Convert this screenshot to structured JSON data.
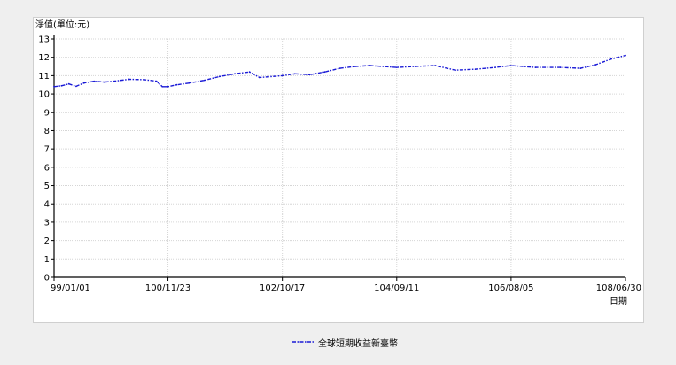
{
  "chart_data": {
    "type": "line",
    "ylabel": "淨值(單位:元)",
    "xlabel": "日期",
    "ylim": [
      0,
      13
    ],
    "yticks": [
      0,
      1,
      2,
      3,
      4,
      5,
      6,
      7,
      8,
      9,
      10,
      11,
      12,
      13
    ],
    "xticks": [
      "99/01/01",
      "100/11/23",
      "102/10/17",
      "104/09/11",
      "106/08/05",
      "108/06/30"
    ],
    "grid": true,
    "legend_position": "bottom-center",
    "series": [
      {
        "name": "全球短期收益新臺幣",
        "color": "#1a1ad6",
        "points": [
          [
            "99/01/01",
            10.4
          ],
          [
            "99/02/15",
            10.45
          ],
          [
            "99/04/01",
            10.55
          ],
          [
            "99/05/15",
            10.42
          ],
          [
            "99/07/01",
            10.6
          ],
          [
            "99/09/01",
            10.7
          ],
          [
            "99/11/01",
            10.65
          ],
          [
            "100/01/01",
            10.7
          ],
          [
            "100/04/01",
            10.8
          ],
          [
            "100/07/01",
            10.78
          ],
          [
            "100/09/15",
            10.7
          ],
          [
            "100/10/20",
            10.4
          ],
          [
            "100/11/23",
            10.4
          ],
          [
            "101/01/15",
            10.5
          ],
          [
            "101/04/01",
            10.6
          ],
          [
            "101/07/01",
            10.75
          ],
          [
            "101/10/01",
            10.95
          ],
          [
            "102/01/01",
            11.1
          ],
          [
            "102/04/01",
            11.2
          ],
          [
            "102/06/01",
            10.9
          ],
          [
            "102/10/17",
            11.0
          ],
          [
            "103/01/01",
            11.1
          ],
          [
            "103/04/01",
            11.05
          ],
          [
            "103/07/01",
            11.2
          ],
          [
            "103/10/01",
            11.4
          ],
          [
            "104/01/01",
            11.5
          ],
          [
            "104/04/01",
            11.55
          ],
          [
            "104/09/11",
            11.45
          ],
          [
            "105/01/01",
            11.5
          ],
          [
            "105/05/01",
            11.55
          ],
          [
            "105/09/01",
            11.3
          ],
          [
            "106/01/01",
            11.35
          ],
          [
            "106/05/01",
            11.45
          ],
          [
            "106/08/05",
            11.55
          ],
          [
            "107/01/01",
            11.45
          ],
          [
            "107/06/01",
            11.45
          ],
          [
            "107/10/01",
            11.4
          ],
          [
            "108/01/01",
            11.6
          ],
          [
            "108/04/01",
            11.9
          ],
          [
            "108/06/30",
            12.1
          ]
        ]
      }
    ]
  }
}
